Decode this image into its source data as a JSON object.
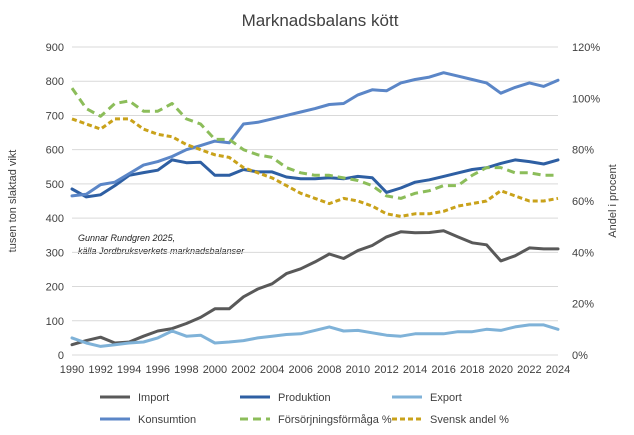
{
  "chart_data": {
    "type": "line",
    "title": "Marknadsbalans kött",
    "ylabel_left": "tusen ton slaktad vikt",
    "ylabel_right": "Andel i procent",
    "annotation": [
      "Gunnar Rundgren 2025,",
      "källa Jordbruksverkets marknadsbalanser"
    ],
    "ylim_left": [
      0,
      900
    ],
    "ylim_right": [
      0,
      120
    ],
    "yticks_left": [
      "0",
      "100",
      "200",
      "300",
      "400",
      "500",
      "600",
      "700",
      "800",
      "900"
    ],
    "yticks_right": [
      "0%",
      "20%",
      "40%",
      "60%",
      "80%",
      "100%",
      "120%"
    ],
    "xticks": [
      "1990",
      "1992",
      "1994",
      "1996",
      "1998",
      "2000",
      "2002",
      "2004",
      "2006",
      "2008",
      "2010",
      "2012",
      "2014",
      "2016",
      "2018",
      "2020",
      "2022",
      "2024"
    ],
    "grid": true,
    "legend_position": "bottom",
    "x": [
      1990,
      1991,
      1992,
      1993,
      1994,
      1995,
      1996,
      1997,
      1998,
      1999,
      2000,
      2001,
      2002,
      2003,
      2004,
      2005,
      2006,
      2007,
      2008,
      2009,
      2010,
      2011,
      2012,
      2013,
      2014,
      2015,
      2016,
      2017,
      2018,
      2019,
      2020,
      2021,
      2022,
      2023,
      2024
    ],
    "series": [
      {
        "name": "Import",
        "axis": "left",
        "color": "#595959",
        "dash": "solid",
        "values": [
          30,
          42,
          52,
          35,
          38,
          55,
          70,
          77,
          92,
          110,
          135,
          135,
          170,
          193,
          208,
          238,
          252,
          272,
          295,
          282,
          305,
          320,
          345,
          360,
          357,
          358,
          363,
          345,
          328,
          322,
          275,
          290,
          313,
          310,
          310
        ]
      },
      {
        "name": "Produktion",
        "axis": "left",
        "color": "#2e5fa3",
        "dash": "solid",
        "values": [
          485,
          462,
          468,
          495,
          525,
          533,
          540,
          570,
          562,
          563,
          525,
          525,
          542,
          535,
          535,
          520,
          515,
          515,
          518,
          515,
          522,
          518,
          475,
          488,
          505,
          512,
          522,
          532,
          542,
          547,
          560,
          570,
          565,
          558,
          570
        ]
      },
      {
        "name": "Export",
        "axis": "left",
        "color": "#7fb2d8",
        "dash": "solid",
        "values": [
          50,
          35,
          25,
          30,
          35,
          38,
          50,
          70,
          55,
          58,
          35,
          38,
          42,
          50,
          55,
          60,
          62,
          72,
          82,
          70,
          72,
          65,
          58,
          55,
          62,
          62,
          62,
          68,
          68,
          75,
          72,
          82,
          88,
          88,
          75
        ]
      },
      {
        "name": "Konsumtion",
        "axis": "left",
        "color": "#5b86c7",
        "dash": "solid",
        "values": [
          465,
          470,
          498,
          505,
          530,
          555,
          565,
          580,
          600,
          612,
          625,
          620,
          675,
          680,
          690,
          700,
          710,
          720,
          732,
          735,
          760,
          775,
          772,
          795,
          805,
          812,
          825,
          815,
          805,
          795,
          765,
          782,
          795,
          785,
          803
        ]
      },
      {
        "name": "Försörjningsförmåga %",
        "axis": "right",
        "color": "#8cbd5a",
        "dash": "8,5",
        "values": [
          104,
          96,
          93,
          98,
          99,
          95,
          95,
          98,
          92,
          90,
          84,
          84,
          80,
          78,
          77,
          73,
          71,
          70,
          70,
          69,
          68,
          66,
          62,
          61,
          63,
          64,
          66,
          66,
          70,
          73,
          73,
          71,
          71,
          70,
          70
        ]
      },
      {
        "name": "Svensk andel %",
        "axis": "right",
        "color": "#c9a21a",
        "dash": "5,3",
        "values": [
          92,
          90,
          88,
          92,
          92,
          88,
          86,
          85,
          82,
          80,
          78,
          77,
          73,
          71,
          69,
          66,
          63,
          61,
          59,
          61,
          60,
          58,
          55,
          54,
          55,
          55,
          56,
          58,
          59,
          60,
          64,
          62,
          60,
          60,
          61
        ]
      }
    ],
    "legend_order": [
      "Import",
      "Produktion",
      "Export",
      "Konsumtion",
      "Försörjningsförmåga %",
      "Svensk andel %"
    ]
  }
}
